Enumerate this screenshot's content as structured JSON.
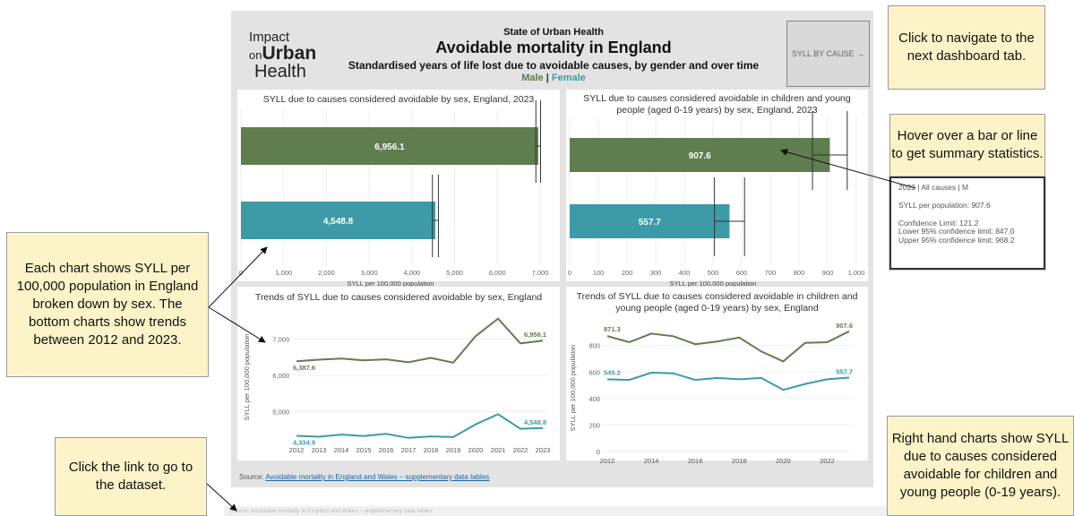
{
  "header": {
    "logo": {
      "line1": "Impact",
      "line2a": "on",
      "line2b": "Urban",
      "line3": "Health"
    },
    "supertitle": "State of Urban Health",
    "title": "Avoidable mortality in England",
    "subtitle": "Standardised years of life lost due to avoidable causes, by gender and over time",
    "legend_male": "Male",
    "legend_sep": "|",
    "legend_female": "Female",
    "nav_button": "SYLL BY CAUSE →"
  },
  "colors": {
    "male": "#5f7d4e",
    "female": "#3c9ba6"
  },
  "source": {
    "prefix": "Source: ",
    "link": "Avoidable mortality in England and Wales – supplementary data tables"
  },
  "ghost_source": "Source: Avoidable mortality in England and Wales – supplementary data tables",
  "callouts": {
    "navigate": "Click to navigate to the next dashboard tab.",
    "hover": "Hover over a bar or line to get summary statistics.",
    "each_chart": "Each chart shows SYLL per 100,000 population in England broken down by sex. The bottom charts show trends between 2012 and 2023.",
    "link": "Click the link to go to the dataset.",
    "right_hand": "Right hand charts show SYLL due to causes considered avoidable for children and young people (0-19 years)."
  },
  "tooltip": {
    "line1": "2023 | All causes | M",
    "line2": "SYLL per population: 907.6",
    "line3": "Confidence Limit: 121.2",
    "line4": "Lower 95% confidence limit: 847.0",
    "line5": "Upper 95% confidence limit: 968.2"
  },
  "chart_data": [
    {
      "type": "bar",
      "title": "SYLL due to causes considered avoidable by sex, England, 2023",
      "xlabel": "SYLL per 100,000 population",
      "xlim": [
        0,
        7000
      ],
      "ticks": [
        0,
        1000,
        2000,
        3000,
        4000,
        5000,
        6000,
        7000
      ],
      "tick_labels": [
        "0",
        "1,000",
        "2,000",
        "3,000",
        "4,000",
        "5,000",
        "6,000",
        "7,000"
      ],
      "bars": [
        {
          "value": 6956.1,
          "label": "6,956.1",
          "low": 6900,
          "high": 7010,
          "color": "#5f7d4e"
        },
        {
          "value": 4548.8,
          "label": "4,548.8",
          "low": 4480,
          "high": 4620,
          "color": "#3c9ba6"
        }
      ]
    },
    {
      "type": "bar",
      "title": "SYLL due to causes considered avoidable in children and young people (aged 0-19 years) by sex, England, 2023",
      "xlabel": "SYLL per 100,000 population",
      "xlim": [
        0,
        1000
      ],
      "ticks": [
        0,
        100,
        200,
        300,
        400,
        500,
        600,
        700,
        800,
        900,
        1000
      ],
      "tick_labels": [
        "0",
        "100",
        "200",
        "300",
        "400",
        "500",
        "600",
        "700",
        "800",
        "900",
        "1,000"
      ],
      "bars": [
        {
          "value": 907.6,
          "label": "907.6",
          "low": 847.0,
          "high": 968.2,
          "color": "#5f7d4e"
        },
        {
          "value": 557.7,
          "label": "557.7",
          "low": 505,
          "high": 610,
          "color": "#3c9ba6"
        }
      ]
    },
    {
      "type": "line",
      "title": "Trends of SYLL due to causes considered avoidable by sex, England",
      "ylabel": "SYLL per 100,000 population",
      "x": [
        2012,
        2013,
        2014,
        2015,
        2016,
        2017,
        2018,
        2019,
        2020,
        2021,
        2022,
        2023
      ],
      "x_tick_labels": [
        "2012",
        "2013",
        "2014",
        "2015",
        "2016",
        "2017",
        "2018",
        "2019",
        "2020",
        "2021",
        "2022",
        "2023"
      ],
      "ylim": [
        4200,
        7700
      ],
      "y_ticks": [
        5000,
        6000,
        7000
      ],
      "y_tick_labels": [
        "5,000",
        "6,000",
        "7,000"
      ],
      "series": [
        {
          "color": "#5f7d4e",
          "values": [
            6387.6,
            6430,
            6460,
            6410,
            6440,
            6360,
            6480,
            6350,
            7080,
            7560,
            6880,
            6956.1
          ],
          "start_label": "6,387.6",
          "end_label": "6,956.1"
        },
        {
          "color": "#3c9ba6",
          "values": [
            4334.9,
            4310,
            4370,
            4330,
            4390,
            4280,
            4320,
            4300,
            4650,
            4930,
            4530,
            4548.8
          ],
          "start_label": "4,334.9",
          "end_label": "4,548.8"
        }
      ]
    },
    {
      "type": "line",
      "title": "Trends of SYLL due to causes considered avoidable in children and young people (aged 0-19 years) by sex, England",
      "ylabel": "SYLL per 100,000 population",
      "x": [
        2012,
        2013,
        2014,
        2015,
        2016,
        2017,
        2018,
        2019,
        2020,
        2021,
        2022,
        2023
      ],
      "x_ticks": [
        2012,
        2014,
        2016,
        2018,
        2020,
        2022
      ],
      "x_tick_labels": [
        "2012",
        "2014",
        "2016",
        "2018",
        "2020",
        "2022"
      ],
      "ylim": [
        0,
        960
      ],
      "y_ticks": [
        0,
        200,
        400,
        600,
        800
      ],
      "y_tick_labels": [
        "0",
        "200",
        "400",
        "600",
        "800"
      ],
      "series": [
        {
          "color": "#5f7d4e",
          "values": [
            871.3,
            825,
            890,
            870,
            810,
            830,
            860,
            755,
            680,
            820,
            825,
            907.6
          ],
          "start_label": "871.3",
          "end_label": "907.6"
        },
        {
          "color": "#3c9ba6",
          "values": [
            545.2,
            540,
            595,
            590,
            540,
            555,
            545,
            555,
            465,
            510,
            545,
            557.7
          ],
          "start_label": "545.2",
          "end_label": "557.7"
        }
      ]
    }
  ]
}
